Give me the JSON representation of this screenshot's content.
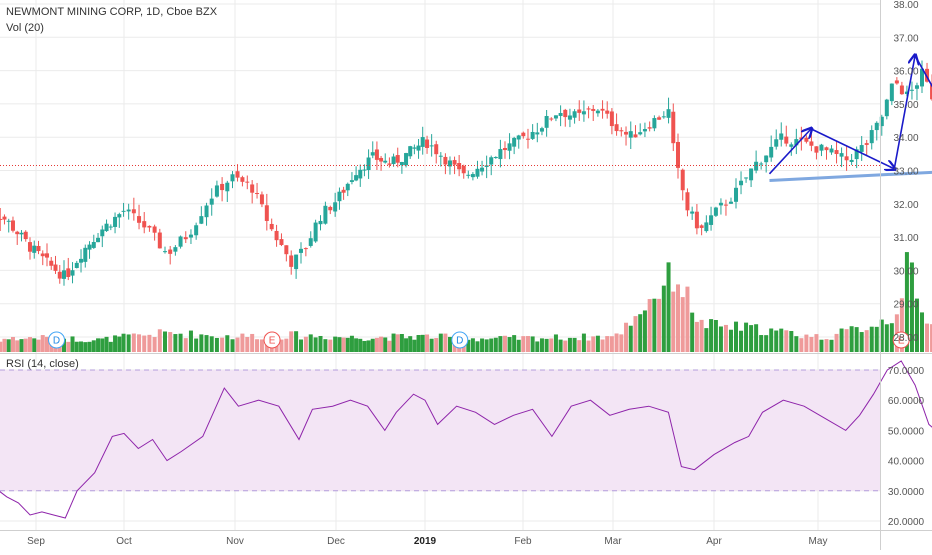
{
  "header": {
    "title": "NEWMONT MINING CORP, 1D, Cboe BZX",
    "volume_label": "Vol (20)"
  },
  "rsi_pane": {
    "label": "RSI (14, close)"
  },
  "colors": {
    "up": "#26a69a",
    "down": "#ef5350",
    "vol_up": "#2e9e3f",
    "vol_down": "#ef9a9a",
    "rsi_line": "#8e24aa",
    "rsi_band": "#f3e5f5",
    "annotation": "#1a1ac9",
    "neckline": "#7fa8e0",
    "last_price": "#e53935",
    "grid": "#ebebeb"
  },
  "chart_data": [
    {
      "type": "candlestick",
      "title": "NEWMONT MINING CORP, 1D, Cboe BZX",
      "y_ticks": [
        "28.00",
        "29.00",
        "30.00",
        "31.00",
        "32.00",
        "33.00",
        "34.00",
        "35.00",
        "36.00",
        "37.00",
        "38.00"
      ],
      "ylim": [
        28.0,
        38.0
      ],
      "x_ticks": [
        "Sep",
        "Oct",
        "Nov",
        "Dec",
        "2019",
        "Feb",
        "Mar",
        "Apr",
        "May"
      ],
      "last_price": 33.15,
      "close_path": [
        [
          0,
          32.0
        ],
        [
          8,
          31.5
        ],
        [
          16,
          30.7
        ],
        [
          22,
          30.2
        ],
        [
          28,
          29.8
        ],
        [
          34,
          30.6
        ],
        [
          40,
          31.2
        ],
        [
          48,
          31.8
        ],
        [
          54,
          31.3
        ],
        [
          60,
          30.5
        ],
        [
          66,
          31.1
        ],
        [
          72,
          32.2
        ],
        [
          78,
          32.8
        ],
        [
          84,
          32.5
        ],
        [
          90,
          31.2
        ],
        [
          96,
          30.2
        ],
        [
          100,
          30.7
        ],
        [
          104,
          31.6
        ],
        [
          110,
          32.2
        ],
        [
          116,
          33.0
        ],
        [
          122,
          33.4
        ],
        [
          128,
          33.2
        ],
        [
          134,
          33.5
        ],
        [
          140,
          33.9
        ],
        [
          146,
          33.4
        ],
        [
          152,
          32.8
        ],
        [
          158,
          33.2
        ],
        [
          164,
          33.6
        ],
        [
          170,
          33.9
        ],
        [
          176,
          34.3
        ],
        [
          182,
          34.8
        ],
        [
          188,
          34.6
        ],
        [
          194,
          34.9
        ],
        [
          198,
          34.5
        ],
        [
          204,
          34.0
        ],
        [
          210,
          34.4
        ],
        [
          216,
          34.8
        ],
        [
          218,
          33.3
        ],
        [
          222,
          31.8
        ],
        [
          226,
          31.2
        ],
        [
          230,
          31.7
        ],
        [
          236,
          32.3
        ],
        [
          242,
          33.2
        ],
        [
          246,
          33.6
        ],
        [
          250,
          34.0
        ],
        [
          256,
          33.8
        ],
        [
          262,
          33.6
        ],
        [
          268,
          33.3
        ],
        [
          274,
          33.8
        ],
        [
          278,
          34.5
        ],
        [
          282,
          35.7
        ],
        [
          286,
          35.2
        ],
        [
          290,
          35.9
        ],
        [
          294,
          35.0
        ],
        [
          298,
          34.0
        ],
        [
          304,
          34.3
        ],
        [
          308,
          33.6
        ],
        [
          312,
          33.3
        ],
        [
          316,
          33.7
        ],
        [
          320,
          34.3
        ],
        [
          324,
          34.5
        ],
        [
          328,
          33.8
        ],
        [
          332,
          33.3
        ]
      ],
      "volume": [
        [
          0,
          1.0
        ],
        [
          20,
          1.2
        ],
        [
          40,
          1.0
        ],
        [
          60,
          1.6
        ],
        [
          78,
          1.3
        ],
        [
          96,
          1.4
        ],
        [
          116,
          1.2
        ],
        [
          140,
          1.3
        ],
        [
          160,
          1.1
        ],
        [
          182,
          1.2
        ],
        [
          200,
          1.3
        ],
        [
          218,
          6.6
        ],
        [
          226,
          2.3
        ],
        [
          240,
          2.0
        ],
        [
          262,
          1.2
        ],
        [
          276,
          2.3
        ],
        [
          282,
          3.0
        ],
        [
          286,
          7.2
        ],
        [
          290,
          3.0
        ],
        [
          300,
          2.6
        ],
        [
          316,
          2.7
        ],
        [
          318,
          3.8
        ],
        [
          320,
          7.4
        ],
        [
          322,
          4.0
        ],
        [
          328,
          3.0
        ],
        [
          332,
          2.9
        ]
      ],
      "events": [
        {
          "label": "D",
          "type": "dividend",
          "t": 25
        },
        {
          "label": "E",
          "type": "earnings",
          "t": 90
        },
        {
          "label": "D",
          "type": "dividend",
          "t": 151
        },
        {
          "label": "E",
          "type": "earnings",
          "t": 284
        },
        {
          "label": "D",
          "type": "dividend",
          "t": 307
        },
        {
          "label": "E",
          "type": "earnings",
          "t": 403
        }
      ],
      "annotations": {
        "neckline": [
          [
            246,
            32.7
          ],
          [
            332,
            33.15
          ]
        ],
        "pattern_path": [
          [
            246,
            32.9
          ],
          [
            258,
            34.25
          ],
          [
            282,
            33.05
          ],
          [
            288,
            36.45
          ],
          [
            306,
            33.1
          ],
          [
            318,
            34.9
          ],
          [
            328,
            33.2
          ]
        ],
        "projection_path": [
          [
            324,
            34.55
          ],
          [
            354,
            30.95
          ]
        ]
      }
    },
    {
      "type": "line",
      "title": "RSI (14, close)",
      "y_ticks": [
        "20.0000",
        "30.0000",
        "40.0000",
        "50.0000",
        "60.0000",
        "70.0000"
      ],
      "ylim": [
        18.5,
        74.5
      ],
      "band": [
        30,
        70
      ],
      "x_ticks": [
        "Sep",
        "Oct",
        "Nov",
        "Dec",
        "2019",
        "Feb",
        "Mar",
        "Apr",
        "May"
      ],
      "values": [
        [
          0,
          24
        ],
        [
          4,
          31
        ],
        [
          8,
          28
        ],
        [
          12,
          26
        ],
        [
          16,
          22
        ],
        [
          20,
          23
        ],
        [
          24,
          22
        ],
        [
          28,
          21
        ],
        [
          32,
          30
        ],
        [
          38,
          36
        ],
        [
          44,
          48
        ],
        [
          48,
          49
        ],
        [
          52,
          44
        ],
        [
          56,
          47
        ],
        [
          60,
          40
        ],
        [
          64,
          43
        ],
        [
          70,
          48
        ],
        [
          76,
          64
        ],
        [
          80,
          58
        ],
        [
          86,
          60
        ],
        [
          92,
          58
        ],
        [
          98,
          47
        ],
        [
          102,
          57
        ],
        [
          108,
          58
        ],
        [
          114,
          60
        ],
        [
          120,
          58
        ],
        [
          126,
          50
        ],
        [
          130,
          56
        ],
        [
          136,
          62
        ],
        [
          140,
          60
        ],
        [
          144,
          52
        ],
        [
          150,
          58
        ],
        [
          156,
          56
        ],
        [
          162,
          52
        ],
        [
          168,
          55
        ],
        [
          174,
          57
        ],
        [
          180,
          48
        ],
        [
          186,
          58
        ],
        [
          192,
          60
        ],
        [
          198,
          55
        ],
        [
          204,
          57
        ],
        [
          210,
          58
        ],
        [
          216,
          56
        ],
        [
          220,
          38
        ],
        [
          224,
          37
        ],
        [
          230,
          42
        ],
        [
          236,
          46
        ],
        [
          240,
          48
        ],
        [
          244,
          56
        ],
        [
          250,
          60
        ],
        [
          256,
          58
        ],
        [
          262,
          54
        ],
        [
          268,
          50
        ],
        [
          272,
          55
        ],
        [
          276,
          62
        ],
        [
          280,
          70
        ],
        [
          284,
          73
        ],
        [
          288,
          65
        ],
        [
          292,
          52
        ],
        [
          296,
          48
        ],
        [
          300,
          51
        ],
        [
          304,
          48
        ],
        [
          308,
          44
        ],
        [
          312,
          47
        ],
        [
          316,
          53
        ],
        [
          320,
          47
        ],
        [
          324,
          54
        ],
        [
          328,
          51
        ],
        [
          332,
          44
        ]
      ]
    }
  ]
}
